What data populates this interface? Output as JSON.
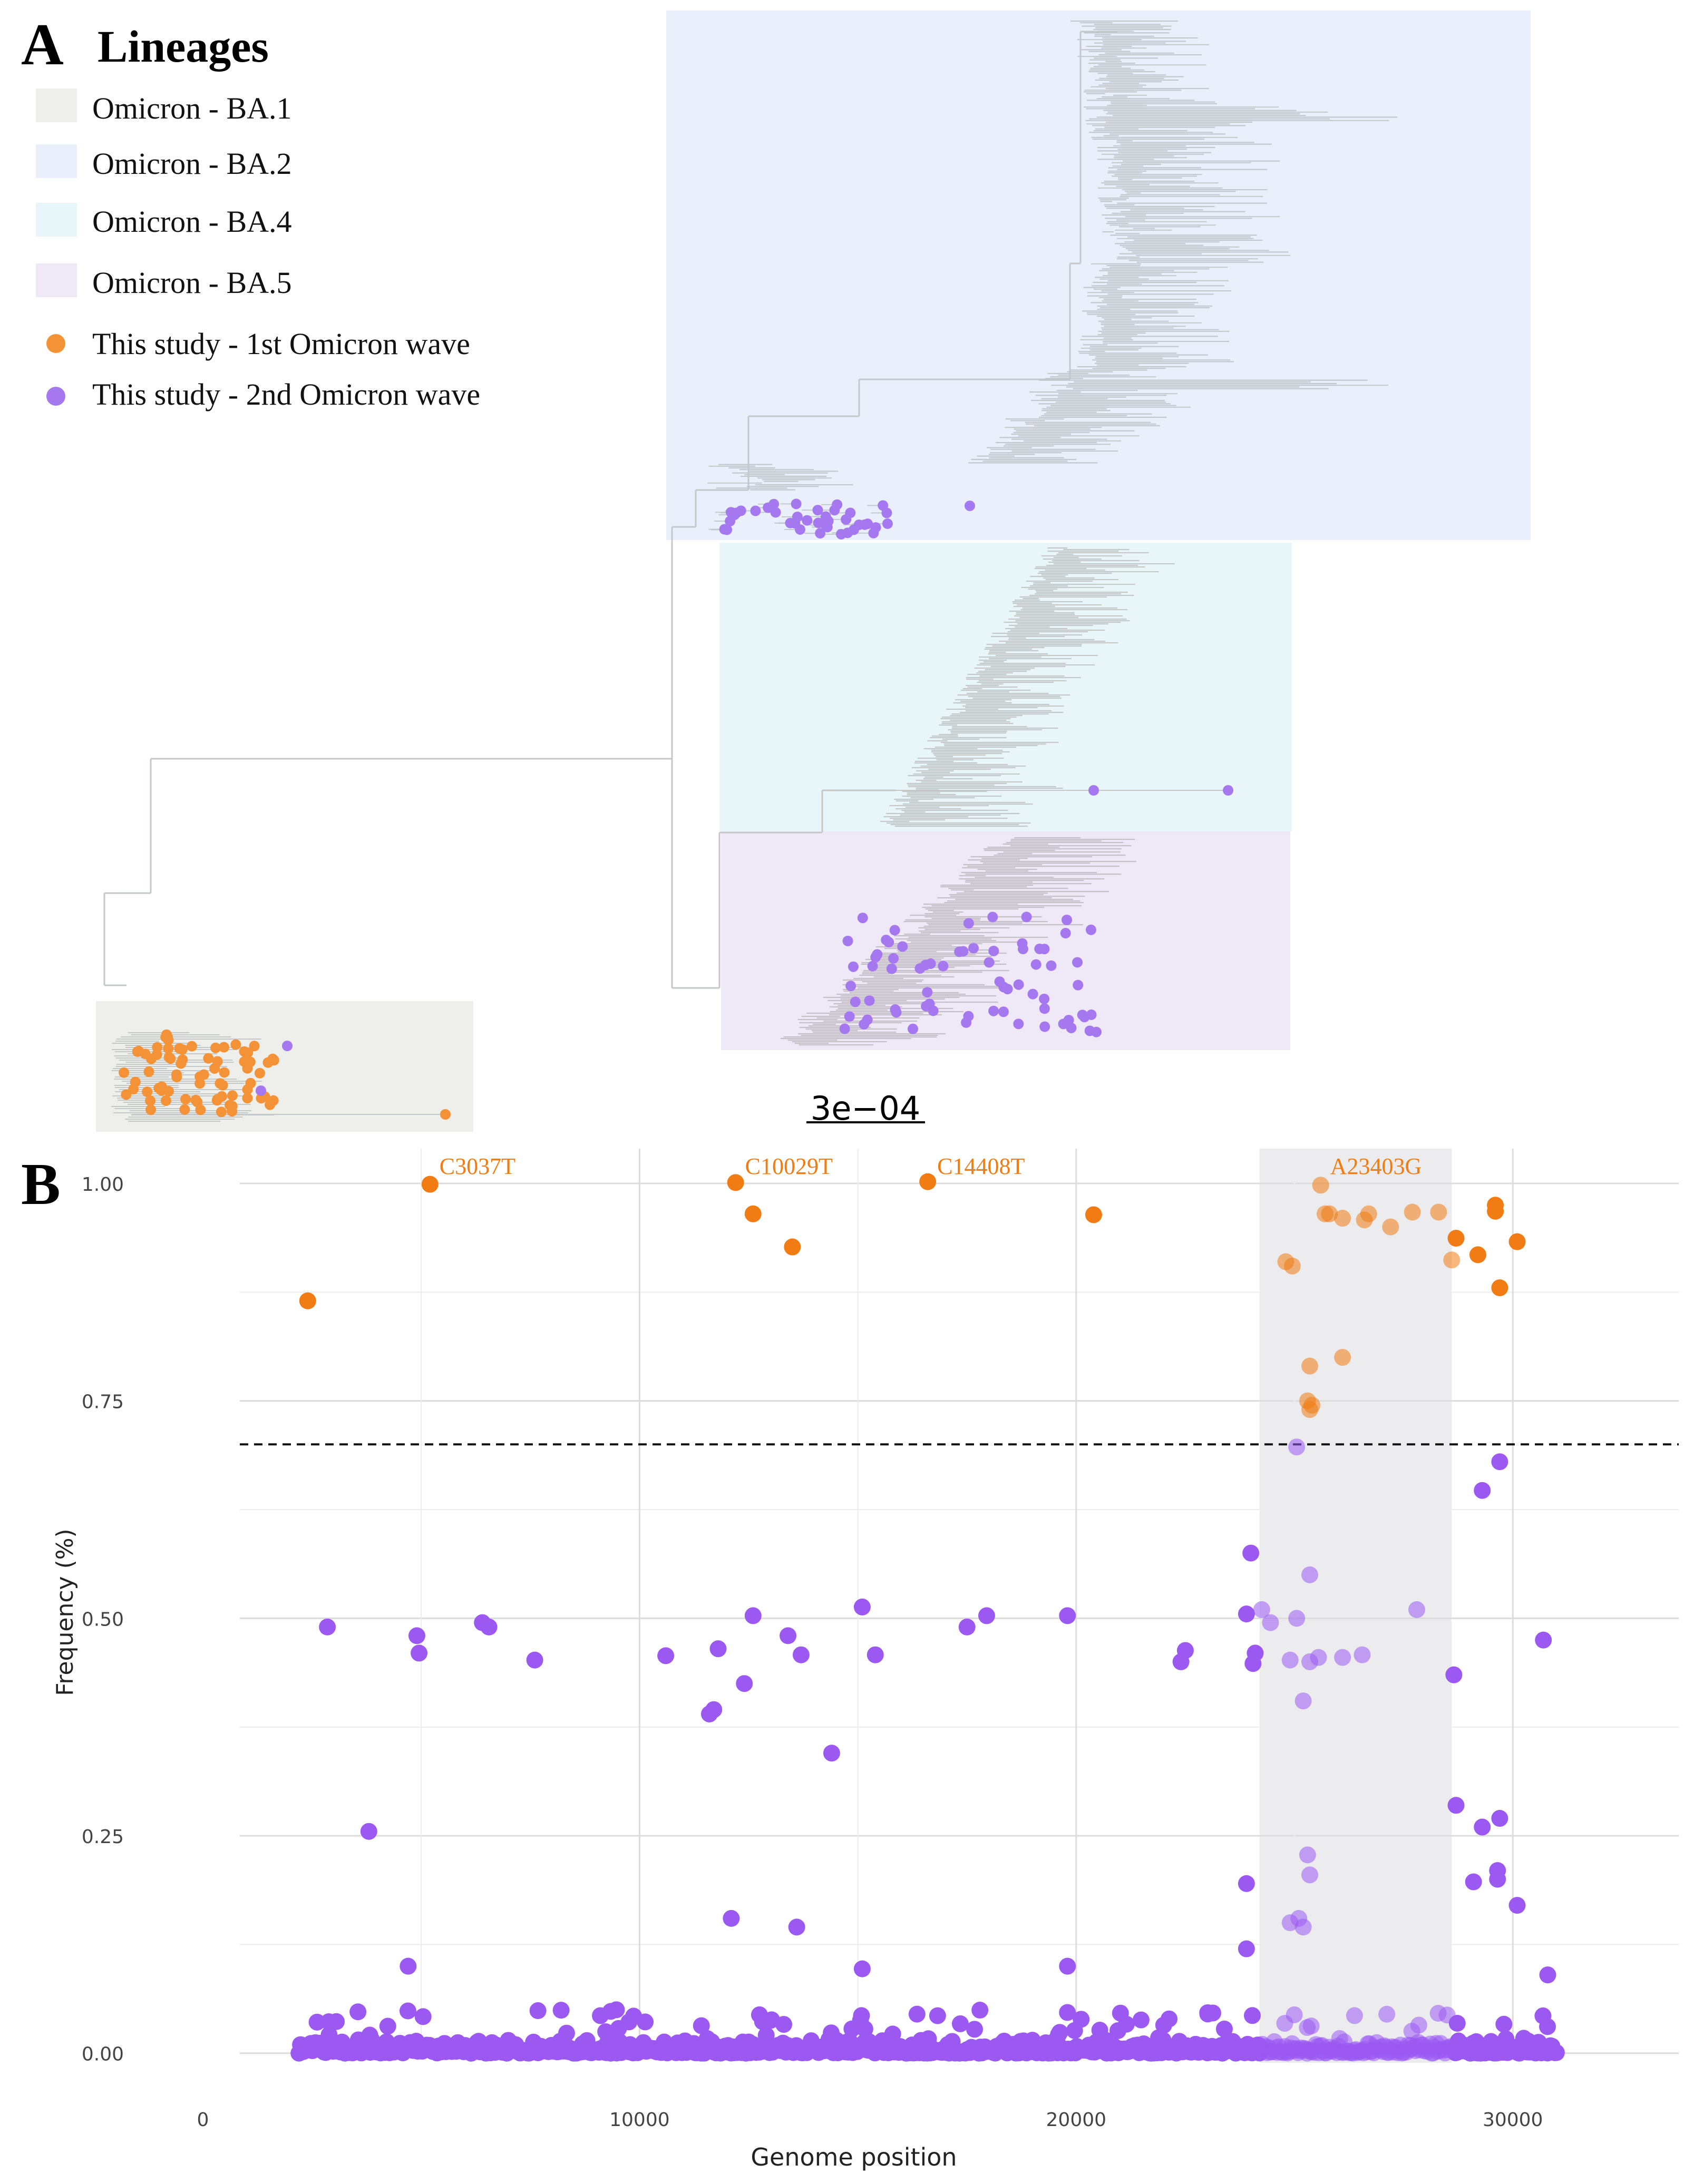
{
  "panel_a": {
    "label": "A",
    "legend": {
      "title": "Lineages",
      "items": [
        {
          "label": "Omicron - BA.1",
          "kind": "box",
          "color": "#eeeeea"
        },
        {
          "label": "Omicron - BA.2",
          "kind": "box",
          "color": "#eaf0fb"
        },
        {
          "label": "Omicron - BA.4",
          "kind": "box",
          "color": "#e9f6f9"
        },
        {
          "label": "Omicron - BA.5",
          "kind": "box",
          "color": "#efe9f7"
        },
        {
          "label": "This study - 1st Omicron wave",
          "kind": "dot",
          "color": "#f39237"
        },
        {
          "label": "This study -  2nd Omicron wave",
          "kind": "dot",
          "color": "#a678f0"
        }
      ]
    },
    "scale_bar": "3e−04",
    "colors": {
      "branch": "#c4c8c8",
      "ba2_clade": "#c2c8cc",
      "ba5_clade": "#c5c0c8"
    }
  },
  "panel_b": {
    "label": "B",
    "chart_data": {
      "type": "scatter",
      "xlabel": "Genome position",
      "ylabel": "Frequency (%)",
      "xlim": [
        0,
        33800
      ],
      "ylim": [
        -0.005,
        1.04
      ],
      "xticks": [
        0,
        10000,
        20000,
        30000
      ],
      "xtick_labels": [
        "0",
        "10000",
        "20000",
        "30000"
      ],
      "yticks": [
        0.0,
        0.25,
        0.5,
        0.75,
        1.0
      ],
      "ytick_labels": [
        "0.00",
        "0.25",
        "0.50",
        "0.75",
        "1.00"
      ],
      "threshold": 0.7,
      "highlight_region": [
        24200,
        28600
      ],
      "colors": {
        "wave1": "#f07c13",
        "wave2": "#9b59f2",
        "region": "#ececef"
      },
      "annotations": [
        {
          "x": 5200,
          "y": 1.0,
          "text": "C3037T"
        },
        {
          "x": 12200,
          "y": 1.0,
          "text": "C10029T"
        },
        {
          "x": 16600,
          "y": 1.0,
          "text": "C14408T"
        },
        {
          "x": 25600,
          "y": 1.0,
          "text": "A23403G"
        }
      ],
      "series": [
        {
          "key": "wave1",
          "points": [
            [
              2400,
              0.865
            ],
            [
              5200,
              0.999
            ],
            [
              12200,
              1.001
            ],
            [
              12600,
              0.965
            ],
            [
              13500,
              0.927
            ],
            [
              16600,
              1.002
            ],
            [
              20400,
              0.964
            ],
            [
              24800,
              0.91
            ],
            [
              24950,
              0.905
            ],
            [
              25350,
              0.79
            ],
            [
              25300,
              0.75
            ],
            [
              25350,
              0.74
            ],
            [
              25400,
              0.745
            ],
            [
              25600,
              0.998
            ],
            [
              25700,
              0.965
            ],
            [
              25800,
              0.965
            ],
            [
              26100,
              0.96
            ],
            [
              26100,
              0.8
            ],
            [
              26600,
              0.958
            ],
            [
              26700,
              0.965
            ],
            [
              27200,
              0.95
            ],
            [
              27700,
              0.967
            ],
            [
              28300,
              0.967
            ],
            [
              28600,
              0.912
            ],
            [
              28700,
              0.937
            ],
            [
              29200,
              0.918
            ],
            [
              29600,
              0.975
            ],
            [
              29600,
              0.968
            ],
            [
              29700,
              0.88
            ],
            [
              30100,
              0.933
            ]
          ]
        },
        {
          "key": "wave2",
          "points": [
            [
              2850,
              0.49
            ],
            [
              4900,
              0.48
            ],
            [
              4950,
              0.46
            ],
            [
              6400,
              0.495
            ],
            [
              6550,
              0.49
            ],
            [
              7600,
              0.452
            ],
            [
              10600,
              0.457
            ],
            [
              11600,
              0.39
            ],
            [
              11700,
              0.395
            ],
            [
              11800,
              0.465
            ],
            [
              12400,
              0.425
            ],
            [
              12600,
              0.503
            ],
            [
              13400,
              0.48
            ],
            [
              13700,
              0.458
            ],
            [
              14400,
              0.345
            ],
            [
              15100,
              0.513
            ],
            [
              15400,
              0.458
            ],
            [
              17500,
              0.49
            ],
            [
              17950,
              0.503
            ],
            [
              19800,
              0.503
            ],
            [
              22400,
              0.45
            ],
            [
              22500,
              0.463
            ],
            [
              23900,
              0.505
            ],
            [
              24000,
              0.575
            ],
            [
              24050,
              0.448
            ],
            [
              24100,
              0.46
            ],
            [
              24250,
              0.51
            ],
            [
              24450,
              0.495
            ],
            [
              24900,
              0.452
            ],
            [
              25050,
              0.5
            ],
            [
              25050,
              0.697
            ],
            [
              25200,
              0.405
            ],
            [
              25350,
              0.55
            ],
            [
              25350,
              0.45
            ],
            [
              25550,
              0.455
            ],
            [
              26100,
              0.455
            ],
            [
              26550,
              0.458
            ],
            [
              27800,
              0.51
            ],
            [
              28650,
              0.435
            ],
            [
              29300,
              0.647
            ],
            [
              29700,
              0.68
            ],
            [
              30700,
              0.475
            ],
            [
              3800,
              0.255
            ],
            [
              4700,
              0.1
            ],
            [
              12100,
              0.155
            ],
            [
              13600,
              0.145
            ],
            [
              15100,
              0.097
            ],
            [
              19800,
              0.1
            ],
            [
              23900,
              0.195
            ],
            [
              23900,
              0.12
            ],
            [
              24900,
              0.15
            ],
            [
              25100,
              0.155
            ],
            [
              25200,
              0.145
            ],
            [
              25300,
              0.228
            ],
            [
              25350,
              0.205
            ],
            [
              28700,
              0.285
            ],
            [
              29100,
              0.197
            ],
            [
              29300,
              0.26
            ],
            [
              29650,
              0.21
            ],
            [
              29650,
              0.2
            ],
            [
              29700,
              0.27
            ],
            [
              30100,
              0.17
            ],
            [
              30800,
              0.09
            ]
          ]
        }
      ]
    }
  }
}
